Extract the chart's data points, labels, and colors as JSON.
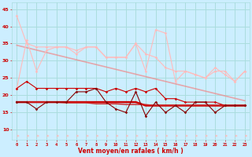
{
  "xlabel": "Vent moyen/en rafales ( km/h )",
  "background_color": "#cceeff",
  "grid_color": "#aadddd",
  "hours": [
    0,
    1,
    2,
    3,
    4,
    5,
    6,
    7,
    8,
    9,
    10,
    11,
    12,
    13,
    14,
    15,
    16,
    17,
    18,
    19,
    20,
    21,
    22,
    23
  ],
  "pink_line1": [
    43,
    35,
    34,
    34,
    34,
    34,
    33,
    34,
    34,
    31,
    31,
    31,
    35,
    32,
    31,
    28,
    27,
    27,
    26,
    25,
    27,
    27,
    24,
    27
  ],
  "pink_line2": [
    22,
    36,
    27,
    33,
    34,
    34,
    32,
    34,
    34,
    31,
    31,
    31,
    35,
    27,
    39,
    38,
    24,
    27,
    26,
    25,
    28,
    26,
    24,
    27
  ],
  "pink_trend": [
    34.5,
    33.8,
    33.1,
    32.4,
    31.7,
    31.0,
    30.3,
    29.6,
    28.9,
    28.2,
    27.5,
    26.8,
    26.1,
    25.4,
    24.7,
    24.0,
    23.3,
    22.6,
    21.9,
    21.2,
    20.5,
    19.8,
    19.1,
    18.4
  ],
  "red_line1": [
    22,
    24,
    22,
    22,
    22,
    22,
    22,
    22,
    22,
    21,
    22,
    21,
    22,
    21,
    22,
    19,
    19,
    18,
    18,
    18,
    18,
    17,
    17,
    17
  ],
  "red_line2": [
    18,
    18,
    16,
    18,
    18,
    18,
    21,
    21,
    22,
    18,
    16,
    15,
    21,
    14,
    18,
    15,
    17,
    15,
    18,
    18,
    15,
    17,
    17,
    17
  ],
  "red_trend": [
    18,
    18,
    18,
    18,
    18,
    17.8,
    17.8,
    17.8,
    17.5,
    17.5,
    17.5,
    17.3,
    17.3,
    17.3,
    17.0,
    17.0,
    17.0,
    17.0,
    17.0,
    17.0,
    17.0,
    17.0,
    17.0,
    17.0
  ],
  "red_flat": [
    18,
    18,
    18,
    18,
    18,
    18,
    18,
    18,
    18,
    18,
    18,
    18,
    18,
    17,
    17,
    17,
    17,
    17,
    17,
    17,
    17,
    17,
    17,
    17
  ],
  "ylim": [
    7,
    47
  ],
  "yticks": [
    10,
    15,
    20,
    25,
    30,
    35,
    40,
    45
  ],
  "pink_color": "#f08888",
  "pink_light_color": "#ffbbbb",
  "red_color": "#cc0000",
  "red_mid_color": "#cc2222",
  "dark_red_color": "#880000"
}
